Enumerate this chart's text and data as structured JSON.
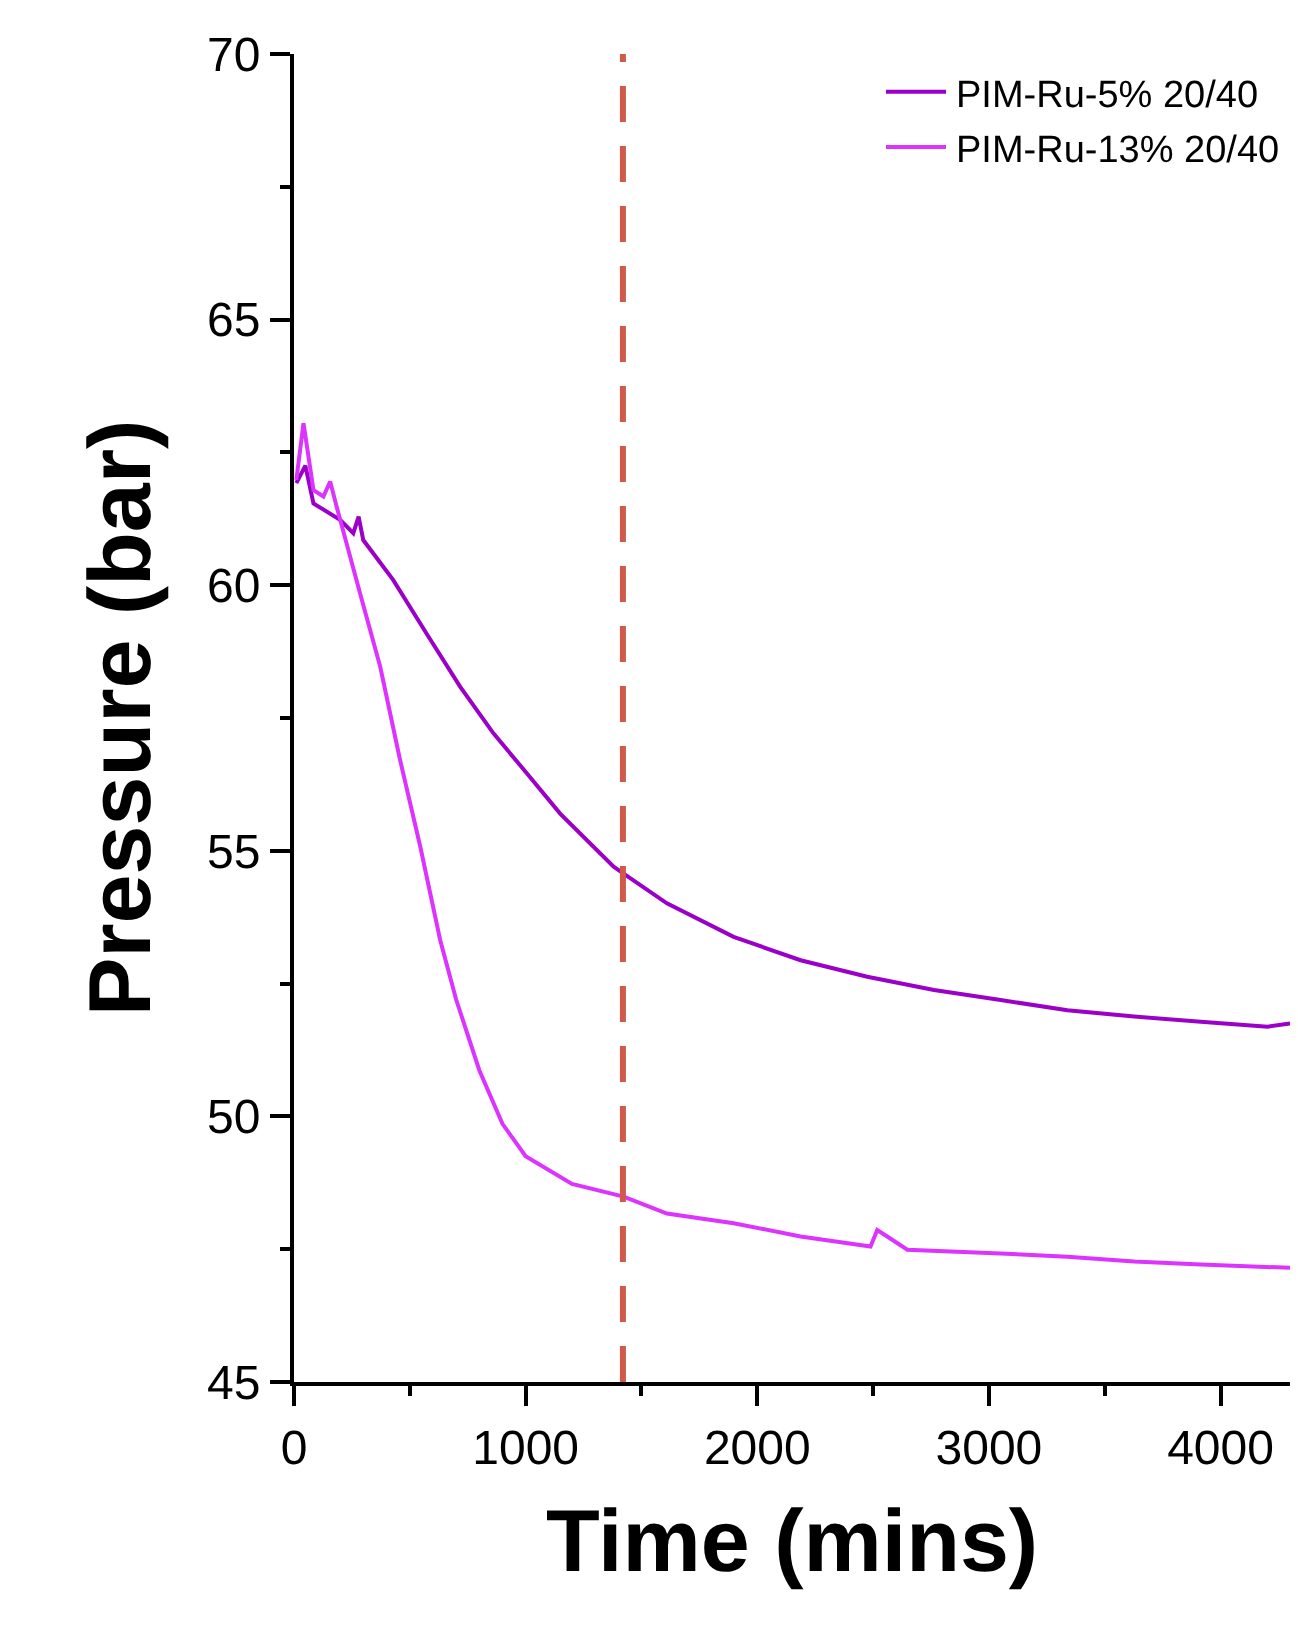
{
  "chart_data": {
    "type": "line",
    "xlabel": "Time (mins)",
    "ylabel": "Pressure (bar)",
    "xlim": [
      0,
      4300
    ],
    "ylim": [
      45,
      70
    ],
    "xticks": [
      0,
      1000,
      2000,
      3000,
      4000
    ],
    "yticks": [
      45,
      50,
      55,
      60,
      65,
      70
    ],
    "grid": false,
    "legend": "top right",
    "marker": "none",
    "line_style": "solid",
    "series": [
      {
        "name": "PIM-Ru-5% 20/40",
        "color": "#9b00c8",
        "x": [
          10,
          49,
          84,
          199,
          256,
          279,
          299,
          428,
          572,
          717,
          861,
          1005,
          1149,
          1380,
          1423,
          1610,
          1898,
          2187,
          2475,
          2763,
          3051,
          3339,
          3627,
          3915,
          4203,
          4300
        ],
        "values": [
          61.92,
          62.25,
          61.54,
          61.23,
          60.98,
          61.29,
          60.85,
          60.1,
          59.09,
          58.09,
          57.21,
          56.46,
          55.7,
          54.7,
          54.57,
          54.01,
          53.38,
          52.94,
          52.63,
          52.38,
          52.19,
          52.0,
          51.88,
          51.78,
          51.69,
          51.75
        ]
      },
      {
        "name": "PIM-Ru-13% 20/40",
        "color": "#dd33ff",
        "x": [
          10,
          41,
          84,
          127,
          156,
          184,
          285,
          372,
          458,
          545,
          631,
          700,
          800,
          900,
          1000,
          1200,
          1423,
          1610,
          1898,
          2187,
          2489,
          2518,
          2561,
          2648,
          3051,
          3339,
          3627,
          3915,
          4300
        ],
        "values": [
          61.98,
          63.05,
          61.79,
          61.67,
          61.95,
          61.48,
          59.85,
          58.47,
          56.71,
          55.08,
          53.32,
          52.2,
          50.87,
          49.86,
          49.25,
          48.73,
          48.49,
          48.17,
          47.99,
          47.74,
          47.55,
          47.86,
          47.74,
          47.49,
          47.42,
          47.36,
          47.27,
          47.21,
          47.15
        ]
      }
    ],
    "ref_lines": [
      {
        "axis": "x",
        "value": 1420,
        "color": "#d05a4a",
        "line_style": "dashed"
      }
    ]
  }
}
